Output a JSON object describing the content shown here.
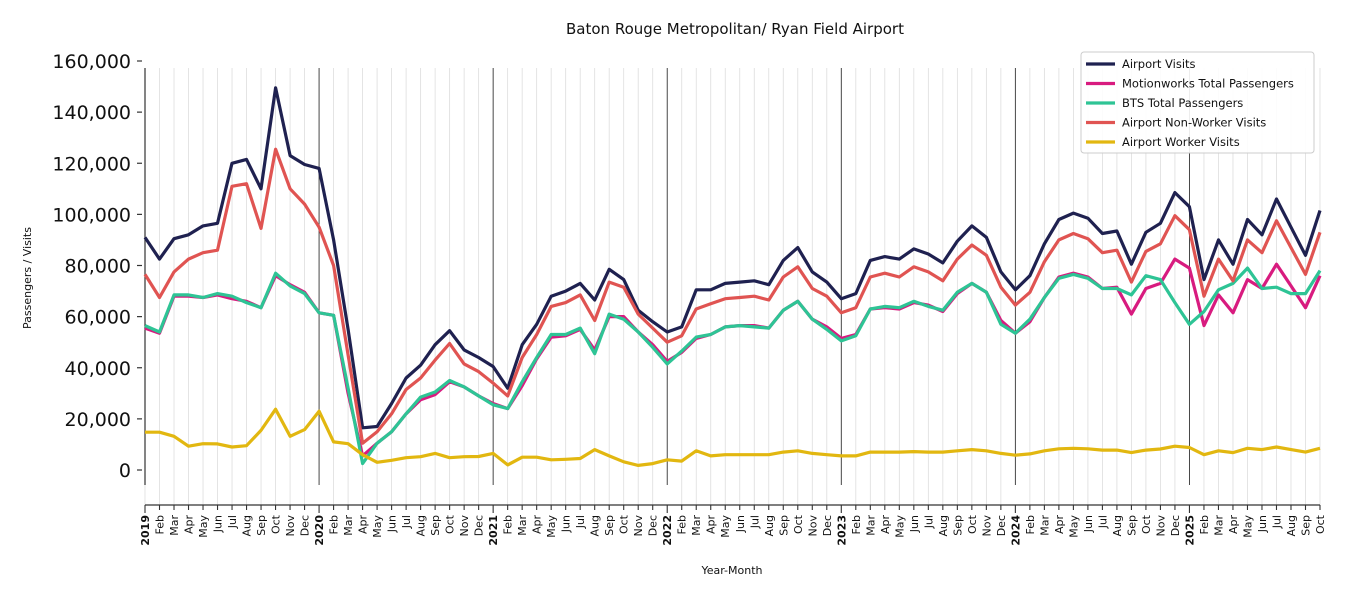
{
  "chart_data": {
    "type": "line",
    "title": "Baton Rouge Metropolitan/ Ryan Field Airport",
    "xlabel": "Year-Month",
    "ylabel": "Passengers / Visits",
    "ylim": [
      0,
      160000
    ],
    "yticks": [
      0,
      20000,
      40000,
      60000,
      80000,
      100000,
      120000,
      140000,
      160000
    ],
    "ytick_labels": [
      "0",
      "20,000",
      "40,000",
      "60,000",
      "80,000",
      "100,000",
      "120,000",
      "140,000",
      "160,000"
    ],
    "legend_position": "top-right",
    "grid": "vertical monthly lines; year boundaries darker",
    "x": [
      "2019",
      "Feb",
      "Mar",
      "Apr",
      "May",
      "Jun",
      "Jul",
      "Aug",
      "Sep",
      "Oct",
      "Nov",
      "Dec",
      "2020",
      "Feb",
      "Mar",
      "Apr",
      "May",
      "Jun",
      "Jul",
      "Aug",
      "Sep",
      "Oct",
      "Nov",
      "Dec",
      "2021",
      "Feb",
      "Mar",
      "Apr",
      "May",
      "Jun",
      "Jul",
      "Aug",
      "Sep",
      "Oct",
      "Nov",
      "Dec",
      "2022",
      "Feb",
      "Mar",
      "Apr",
      "May",
      "Jun",
      "Jul",
      "Aug",
      "Sep",
      "Oct",
      "Nov",
      "Dec",
      "2023",
      "Feb",
      "Mar",
      "Apr",
      "May",
      "Jun",
      "Jul",
      "Aug",
      "Sep",
      "Oct",
      "Nov",
      "Dec",
      "2024",
      "Feb",
      "Mar",
      "Apr",
      "May",
      "Jun",
      "Jul",
      "Aug",
      "Sep",
      "Oct",
      "Nov",
      "Dec",
      "2025",
      "Feb",
      "Mar",
      "Apr",
      "May",
      "Jun",
      "Jul",
      "Aug",
      "Sep",
      "Oct"
    ],
    "year_labels": [
      "2019",
      "2020",
      "2021",
      "2022",
      "2023",
      "2024",
      "2025"
    ],
    "series": [
      {
        "name": "Airport Visits",
        "color": "#1f2150",
        "values": [
          91000,
          82500,
          90500,
          92000,
          95500,
          96500,
          120000,
          121500,
          110000,
          149500,
          123000,
          119500,
          118000,
          90000,
          55000,
          16500,
          17000,
          26000,
          36000,
          41000,
          49000,
          54500,
          47000,
          44000,
          40500,
          32000,
          49000,
          57000,
          68000,
          70000,
          73000,
          66500,
          78500,
          74500,
          62500,
          58000,
          54000,
          56000,
          70500,
          70500,
          73000,
          73500,
          74000,
          72500,
          82000,
          87000,
          77500,
          73500,
          67000,
          69000,
          82000,
          83500,
          82500,
          86500,
          84500,
          81000,
          89500,
          95500,
          91000,
          77500,
          70500,
          76000,
          88500,
          98000,
          100500,
          98500,
          92500,
          93500,
          80500,
          93000,
          96500,
          108500,
          103000,
          74500,
          90000,
          80500,
          98000,
          92000,
          106000,
          95000,
          84000,
          101500
        ]
      },
      {
        "name": "Motionworks Total Passengers",
        "color": "#d81b7f",
        "values": [
          55500,
          53500,
          68000,
          68000,
          67500,
          68500,
          67000,
          66000,
          63500,
          76000,
          72500,
          69500,
          61500,
          60500,
          30000,
          5500,
          10500,
          15000,
          22000,
          27500,
          29500,
          34500,
          32500,
          29000,
          26000,
          24000,
          33000,
          43500,
          52000,
          52500,
          55000,
          47000,
          60000,
          60000,
          54000,
          49000,
          42500,
          46000,
          51500,
          53000,
          56000,
          56500,
          56500,
          55500,
          62500,
          66000,
          59000,
          56000,
          51500,
          53000,
          63000,
          63500,
          63000,
          65500,
          64500,
          62000,
          69000,
          73000,
          69500,
          58500,
          53500,
          58000,
          67500,
          75500,
          77000,
          75500,
          71000,
          71500,
          61000,
          71000,
          73000,
          82500,
          79000,
          56500,
          68500,
          61500,
          74500,
          71000,
          80500,
          72000,
          63500,
          76000
        ]
      },
      {
        "name": "BTS Total Passengers",
        "color": "#2ec495",
        "values": [
          56500,
          54000,
          68500,
          68500,
          67500,
          69000,
          68000,
          65500,
          63500,
          77000,
          72000,
          69000,
          61500,
          60500,
          32000,
          2500,
          10500,
          15000,
          22000,
          28500,
          30500,
          35000,
          32500,
          29000,
          25500,
          24000,
          34500,
          44000,
          53000,
          53000,
          55500,
          45500,
          61000,
          59000,
          54000,
          48000,
          41500,
          46500,
          52000,
          53000,
          56000,
          56500,
          56000,
          55500,
          62500,
          66000,
          59000,
          55000,
          50500,
          52500,
          63000,
          64000,
          63500,
          66000,
          64000,
          62500,
          69500,
          73000,
          69500,
          57000,
          53500,
          59000,
          67500,
          75000,
          76500,
          75000,
          71000,
          71000,
          68500,
          76000,
          74500,
          65500,
          57000,
          62000,
          70500,
          73000,
          79000,
          71000,
          71500,
          69000,
          69000,
          78000
        ]
      },
      {
        "name": "Airport Non-Worker Visits",
        "color": "#e05452",
        "values": [
          76500,
          67500,
          77500,
          82500,
          85000,
          86000,
          111000,
          112000,
          94500,
          125500,
          110000,
          104000,
          95000,
          80000,
          45000,
          10500,
          15000,
          22000,
          31500,
          36000,
          43000,
          49500,
          41500,
          38500,
          34000,
          29000,
          44000,
          53000,
          64000,
          65500,
          68500,
          58500,
          73500,
          71500,
          61000,
          55500,
          50000,
          52500,
          63000,
          65000,
          67000,
          67500,
          68000,
          66500,
          75500,
          79500,
          71000,
          68000,
          61500,
          63500,
          75500,
          77000,
          75500,
          79500,
          77500,
          74000,
          82500,
          88000,
          84000,
          71500,
          64500,
          69500,
          81500,
          90000,
          92500,
          90500,
          85000,
          86000,
          73500,
          85500,
          88500,
          99500,
          94000,
          68000,
          82500,
          74000,
          90000,
          85000,
          97500,
          87000,
          76500,
          93000
        ]
      },
      {
        "name": "Airport Worker Visits",
        "color": "#e2b710",
        "values": [
          14800,
          14800,
          13200,
          9300,
          10300,
          10200,
          9000,
          9500,
          15500,
          23800,
          13200,
          15800,
          23000,
          11000,
          10300,
          6000,
          3000,
          3800,
          4800,
          5200,
          6500,
          4800,
          5200,
          5300,
          6500,
          2000,
          5000,
          5000,
          4000,
          4200,
          4500,
          8000,
          5500,
          3200,
          1800,
          2500,
          4000,
          3500,
          7500,
          5500,
          6000,
          6000,
          6000,
          6000,
          7000,
          7500,
          6500,
          6000,
          5500,
          5500,
          7000,
          7000,
          7000,
          7200,
          7000,
          7000,
          7500,
          8000,
          7500,
          6500,
          5800,
          6300,
          7500,
          8300,
          8500,
          8300,
          7800,
          7800,
          6800,
          7800,
          8200,
          9300,
          8800,
          6000,
          7500,
          6800,
          8500,
          8000,
          9000,
          8000,
          7000,
          8500
        ]
      }
    ]
  }
}
